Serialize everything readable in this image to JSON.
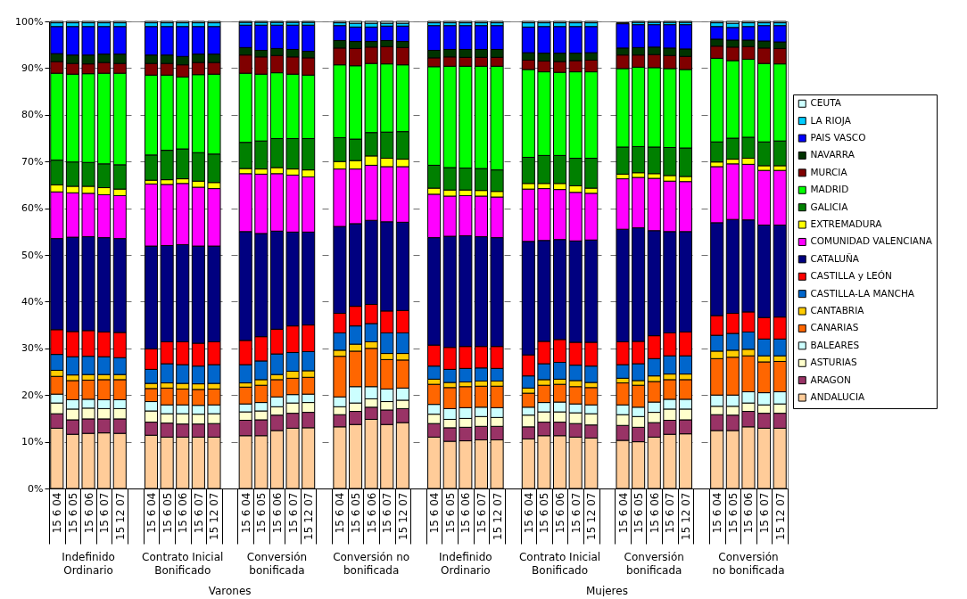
{
  "chart_data": {
    "type": "bar",
    "stacked": true,
    "legend": "right",
    "grid": "y",
    "categories": [
      "15 6 04",
      "15 6 05",
      "15 6 06",
      "15 6 07",
      "15 12 07",
      null,
      "15 6 04",
      "15 6 05",
      "15 6 06",
      "15 6 07",
      "15 12 07",
      null,
      "15 6 04",
      "15 6 05",
      "15 6 06",
      "15 6 07",
      "15 12 07",
      null,
      "15 6 04",
      "15 6 05",
      "15 6 06",
      "15 6 07",
      "15 12 07",
      null,
      "15 6 04",
      "15 6 05",
      "15 6 06",
      "15 6 07",
      "15 12 07",
      null,
      "15 6 04",
      "15 6 05",
      "15 6 06",
      "15 6 07",
      "15 12 07",
      null,
      "15 6 04",
      "15 6 05",
      "15 6 06",
      "15 6 07",
      "15 12 07",
      null,
      "15 6 04",
      "15 6 05",
      "15 6 06",
      "15 6 07",
      "15 12 07"
    ],
    "ylim": [
      0,
      100
    ],
    "yticks": [
      {
        "value": 0,
        "label": "0%"
      },
      {
        "value": 10,
        "label": "10%"
      },
      {
        "value": 20,
        "label": "20%"
      },
      {
        "value": 30,
        "label": "30%"
      },
      {
        "value": 40,
        "label": "40%"
      },
      {
        "value": 50,
        "label": "50%"
      },
      {
        "value": 60,
        "label": "60%"
      },
      {
        "value": 70,
        "label": "70%"
      },
      {
        "value": 80,
        "label": "80%"
      },
      {
        "value": 90,
        "label": "90%"
      },
      {
        "value": 100,
        "label": "100%"
      }
    ],
    "annotations": [
      "Indefinido\nOrdinario",
      "Contrato Inicial\nBonificado",
      "Conversión\nbonificada",
      "Conversión no\nbonificada",
      "Indefinido\nOrdinario",
      "Contrato Inicial\nBonificado",
      "Conversión\nbonificada",
      "Conversión\nno bonificada",
      "Varones",
      "Mujeres"
    ],
    "series": [
      {
        "name": "ANDALUCIA",
        "color": "#ffcc99",
        "values": [
          12.9,
          11.6,
          11.8,
          11.9,
          11.8,
          null,
          11.4,
          11.0,
          11.0,
          11.0,
          11.0,
          null,
          11.3,
          11.3,
          12.4,
          12.9,
          13.0,
          null,
          13.2,
          13.7,
          14.8,
          13.7,
          14.1,
          null,
          11.0,
          10.1,
          10.2,
          10.4,
          10.4,
          null,
          10.6,
          11.3,
          11.3,
          11.0,
          10.8,
          null,
          10.3,
          10.0,
          11.0,
          11.6,
          11.7,
          null,
          12.4,
          12.4,
          13.2,
          12.9,
          12.9
        ]
      },
      {
        "name": "ARAGON",
        "color": "#993366",
        "values": [
          3.1,
          3.1,
          3.1,
          3.0,
          3.1,
          null,
          2.8,
          3.0,
          2.8,
          2.8,
          2.9,
          null,
          3.3,
          3.4,
          3.3,
          3.2,
          3.3,
          null,
          2.6,
          2.8,
          2.6,
          3.1,
          3.0,
          null,
          2.9,
          2.9,
          2.9,
          2.9,
          2.9,
          null,
          2.6,
          2.9,
          2.9,
          2.9,
          2.8,
          null,
          3.2,
          3.1,
          3.1,
          3.0,
          3.0,
          null,
          3.4,
          3.3,
          3.3,
          3.2,
          3.2
        ]
      },
      {
        "name": "ASTURIAS",
        "color": "#ffffcc",
        "values": [
          2.3,
          2.3,
          2.3,
          2.2,
          2.2,
          null,
          2.4,
          2.0,
          2.2,
          2.1,
          2.1,
          null,
          1.8,
          1.9,
          1.8,
          2.2,
          2.1,
          null,
          1.7,
          1.8,
          1.8,
          1.8,
          1.8,
          null,
          2.0,
          1.8,
          1.9,
          2.1,
          1.9,
          null,
          2.5,
          2.2,
          2.2,
          2.3,
          2.4,
          null,
          2.3,
          2.3,
          2.2,
          2.4,
          2.3,
          null,
          1.8,
          1.9,
          1.8,
          1.8,
          2.0
        ]
      },
      {
        "name": "BALEARES",
        "color": "#ccffff",
        "values": [
          1.9,
          2.0,
          1.9,
          1.9,
          1.9,
          null,
          2.0,
          1.9,
          1.9,
          1.9,
          1.9,
          null,
          1.7,
          1.8,
          2.1,
          1.8,
          1.8,
          null,
          2.1,
          3.5,
          2.6,
          2.7,
          2.6,
          null,
          2.1,
          2.3,
          2.3,
          2.0,
          2.1,
          null,
          1.7,
          2.0,
          2.1,
          1.9,
          1.9,
          null,
          2.1,
          2.0,
          2.2,
          2.1,
          2.1,
          null,
          2.4,
          2.4,
          2.4,
          2.6,
          2.6
        ]
      },
      {
        "name": "CANARIAS",
        "color": "#ff6600",
        "values": [
          3.8,
          4.1,
          4.1,
          4.3,
          4.3,
          null,
          2.8,
          3.6,
          3.4,
          3.4,
          3.4,
          null,
          3.6,
          3.7,
          3.7,
          3.5,
          3.6,
          null,
          8.7,
          7.6,
          8.2,
          6.3,
          6.0,
          null,
          4.3,
          4.5,
          4.5,
          4.5,
          4.6,
          null,
          3.0,
          3.7,
          3.8,
          3.7,
          3.7,
          null,
          4.7,
          4.7,
          4.4,
          4.2,
          4.2,
          null,
          7.8,
          8.1,
          7.7,
          6.6,
          6.5
        ]
      },
      {
        "name": "CANTABRIA",
        "color": "#ffcc00",
        "values": [
          1.3,
          1.2,
          1.2,
          1.1,
          1.1,
          null,
          1.1,
          1.1,
          1.2,
          1.2,
          1.2,
          null,
          0.9,
          1.2,
          1.1,
          1.5,
          1.4,
          null,
          1.3,
          1.5,
          1.4,
          1.3,
          1.4,
          null,
          1.1,
          1.1,
          1.0,
          1.1,
          1.1,
          null,
          1.1,
          1.2,
          1.1,
          1.3,
          1.1,
          null,
          1.0,
          1.0,
          1.2,
          1.2,
          1.2,
          null,
          1.6,
          1.5,
          1.4,
          1.3,
          1.2
        ]
      },
      {
        "name": "CASTILLA-LA MANCHA",
        "color": "#0066cc",
        "values": [
          3.4,
          3.9,
          3.9,
          3.8,
          3.6,
          null,
          3.0,
          4.1,
          4.0,
          3.8,
          4.0,
          null,
          3.9,
          4.0,
          4.4,
          4.0,
          4.1,
          null,
          3.7,
          3.9,
          3.9,
          4.4,
          4.4,
          null,
          2.8,
          2.8,
          2.9,
          2.8,
          2.7,
          null,
          2.6,
          3.4,
          3.6,
          3.3,
          3.5,
          null,
          2.9,
          3.6,
          3.7,
          3.9,
          3.9,
          null,
          3.4,
          3.6,
          3.7,
          3.6,
          3.6
        ]
      },
      {
        "name": "CASTILLA y LEÓN",
        "color": "#ff0000",
        "values": [
          5.3,
          5.4,
          5.5,
          5.3,
          5.4,
          null,
          4.4,
          4.7,
          4.9,
          4.9,
          4.9,
          null,
          5.2,
          5.2,
          5.3,
          5.7,
          5.7,
          null,
          4.2,
          4.2,
          4.1,
          4.7,
          4.8,
          null,
          4.5,
          4.7,
          4.7,
          4.6,
          4.7,
          null,
          4.5,
          4.8,
          4.9,
          4.9,
          5.1,
          null,
          4.9,
          4.8,
          4.9,
          4.9,
          5.1,
          null,
          4.2,
          4.3,
          4.3,
          4.6,
          4.7
        ]
      },
      {
        "name": "CATALUÑA",
        "color": "#000080",
        "values": [
          19.5,
          20.2,
          20.1,
          20.2,
          20.1,
          null,
          22.0,
          20.6,
          20.8,
          20.8,
          20.5,
          null,
          23.3,
          22.1,
          21.0,
          20.1,
          19.9,
          null,
          18.6,
          17.7,
          18.0,
          19.1,
          18.9,
          null,
          23.0,
          23.8,
          23.7,
          23.5,
          23.3,
          null,
          24.3,
          21.6,
          21.4,
          21.7,
          21.9,
          null,
          24.1,
          24.3,
          22.5,
          21.7,
          21.5,
          null,
          19.9,
          20.1,
          19.7,
          19.8,
          19.7
        ]
      },
      {
        "name": "COMUNIDAD VALENCIANA",
        "color": "#ff00ff",
        "values": [
          10.0,
          9.5,
          9.3,
          9.2,
          9.2,
          null,
          13.3,
          13.1,
          13.1,
          12.6,
          12.3,
          null,
          12.4,
          12.7,
          12.3,
          12.2,
          11.8,
          null,
          12.3,
          11.7,
          11.8,
          11.8,
          11.9,
          null,
          9.3,
          8.6,
          8.6,
          8.7,
          8.7,
          null,
          11.2,
          11.1,
          10.7,
          10.4,
          10.0,
          null,
          10.8,
          10.8,
          11.2,
          10.8,
          10.7,
          null,
          12.0,
          11.9,
          11.9,
          11.7,
          11.7
        ]
      },
      {
        "name": "EXTREMADURA",
        "color": "#ffff00",
        "values": [
          1.5,
          1.4,
          1.5,
          1.5,
          1.4,
          null,
          0.8,
          1.0,
          1.0,
          1.3,
          1.3,
          null,
          1.1,
          1.1,
          1.3,
          1.3,
          1.5,
          null,
          1.6,
          1.8,
          2.0,
          1.8,
          1.6,
          null,
          1.3,
          1.3,
          1.2,
          1.2,
          1.2,
          null,
          1.2,
          1.1,
          1.3,
          1.4,
          1.1,
          null,
          1.0,
          1.0,
          1.0,
          1.2,
          1.1,
          null,
          1.0,
          1.0,
          1.3,
          1.0,
          1.0
        ]
      },
      {
        "name": "GALICIA",
        "color": "#008000",
        "values": [
          5.3,
          5.2,
          5.1,
          5.1,
          5.2,
          null,
          5.4,
          6.3,
          6.4,
          6.1,
          6.1,
          null,
          5.6,
          6.0,
          6.2,
          6.5,
          6.7,
          null,
          5.1,
          4.6,
          5.0,
          5.6,
          5.9,
          null,
          4.9,
          4.8,
          4.7,
          4.7,
          4.6,
          null,
          5.6,
          6.0,
          6.0,
          5.9,
          6.4,
          null,
          5.8,
          5.6,
          5.7,
          6.0,
          6.1,
          null,
          4.3,
          4.5,
          4.5,
          5.1,
          5.3
        ]
      },
      {
        "name": "MADRID",
        "color": "#00ff00",
        "values": [
          18.6,
          18.8,
          19.0,
          19.4,
          19.6,
          null,
          17.1,
          16.1,
          15.4,
          16.7,
          17.1,
          null,
          14.8,
          14.3,
          14.1,
          13.8,
          13.6,
          null,
          15.6,
          15.7,
          14.8,
          14.6,
          14.3,
          null,
          21.1,
          21.7,
          21.8,
          21.9,
          22.2,
          null,
          18.8,
          17.9,
          17.8,
          18.5,
          18.5,
          null,
          16.8,
          17.0,
          17.0,
          16.9,
          16.8,
          null,
          17.9,
          16.6,
          16.7,
          16.8,
          16.5
        ]
      },
      {
        "name": "MURCIA",
        "color": "#800000",
        "values": [
          2.5,
          2.3,
          2.1,
          2.3,
          2.1,
          null,
          2.5,
          2.5,
          2.6,
          2.6,
          2.5,
          null,
          3.9,
          3.7,
          3.7,
          3.7,
          3.7,
          null,
          3.6,
          3.7,
          3.5,
          3.7,
          3.7,
          null,
          1.9,
          2.0,
          1.9,
          1.9,
          1.9,
          null,
          2.0,
          2.3,
          2.3,
          2.4,
          2.5,
          null,
          2.9,
          2.6,
          2.8,
          2.8,
          2.8,
          null,
          2.6,
          2.9,
          2.7,
          3.3,
          3.3
        ]
      },
      {
        "name": "NAVARRA",
        "color": "#003300",
        "values": [
          1.7,
          1.8,
          1.9,
          1.8,
          2.0,
          null,
          1.8,
          1.8,
          1.8,
          1.8,
          1.8,
          null,
          1.6,
          1.4,
          1.5,
          1.6,
          1.4,
          null,
          1.6,
          1.5,
          1.2,
          1.3,
          1.3,
          null,
          1.6,
          1.6,
          1.7,
          1.7,
          1.7,
          null,
          1.6,
          1.7,
          1.8,
          1.6,
          1.6,
          null,
          1.5,
          1.6,
          1.6,
          1.6,
          1.6,
          null,
          1.5,
          1.5,
          1.4,
          1.5,
          1.4
        ]
      },
      {
        "name": "PAIS VASCO",
        "color": "#0000ff",
        "values": [
          5.8,
          6.1,
          6.1,
          5.9,
          5.9,
          null,
          6.1,
          6.1,
          6.4,
          5.9,
          5.9,
          null,
          4.8,
          5.4,
          5.0,
          5.2,
          5.6,
          null,
          3.2,
          3.1,
          3.1,
          3.1,
          3.3,
          null,
          5.3,
          5.1,
          5.1,
          5.1,
          5.1,
          null,
          5.5,
          5.7,
          5.7,
          5.7,
          5.6,
          null,
          5.2,
          4.9,
          4.8,
          5.0,
          5.2,
          null,
          2.7,
          2.7,
          2.9,
          3.3,
          3.5
        ]
      },
      {
        "name": "LA RIOJA",
        "color": "#00ccff",
        "values": [
          0.8,
          0.8,
          0.8,
          0.8,
          0.8,
          null,
          0.8,
          0.8,
          0.8,
          0.8,
          0.8,
          null,
          0.6,
          0.6,
          0.6,
          0.6,
          0.6,
          null,
          0.6,
          0.8,
          0.8,
          0.6,
          0.6,
          null,
          0.6,
          0.6,
          0.6,
          0.6,
          0.6,
          null,
          0.9,
          0.8,
          0.8,
          0.8,
          0.8,
          null,
          null,
          0.5,
          0.5,
          0.5,
          0.5,
          null,
          0.8,
          0.9,
          0.8,
          0.6,
          0.6
        ]
      },
      {
        "name": "CEUTA",
        "color": "#ccffff",
        "values": [
          0.3,
          0.3,
          0.3,
          0.3,
          0.3,
          null,
          0.3,
          0.3,
          0.3,
          0.3,
          0.3,
          null,
          0.2,
          0.2,
          0.2,
          0.2,
          0.2,
          null,
          0.3,
          0.4,
          0.4,
          0.4,
          0.4,
          null,
          0.3,
          0.3,
          0.3,
          0.3,
          0.3,
          null,
          0.3,
          0.3,
          0.3,
          0.3,
          0.3,
          null,
          0.2,
          0.2,
          0.2,
          0.2,
          0.2,
          null,
          0.3,
          0.4,
          0.3,
          0.3,
          0.3
        ]
      }
    ]
  }
}
